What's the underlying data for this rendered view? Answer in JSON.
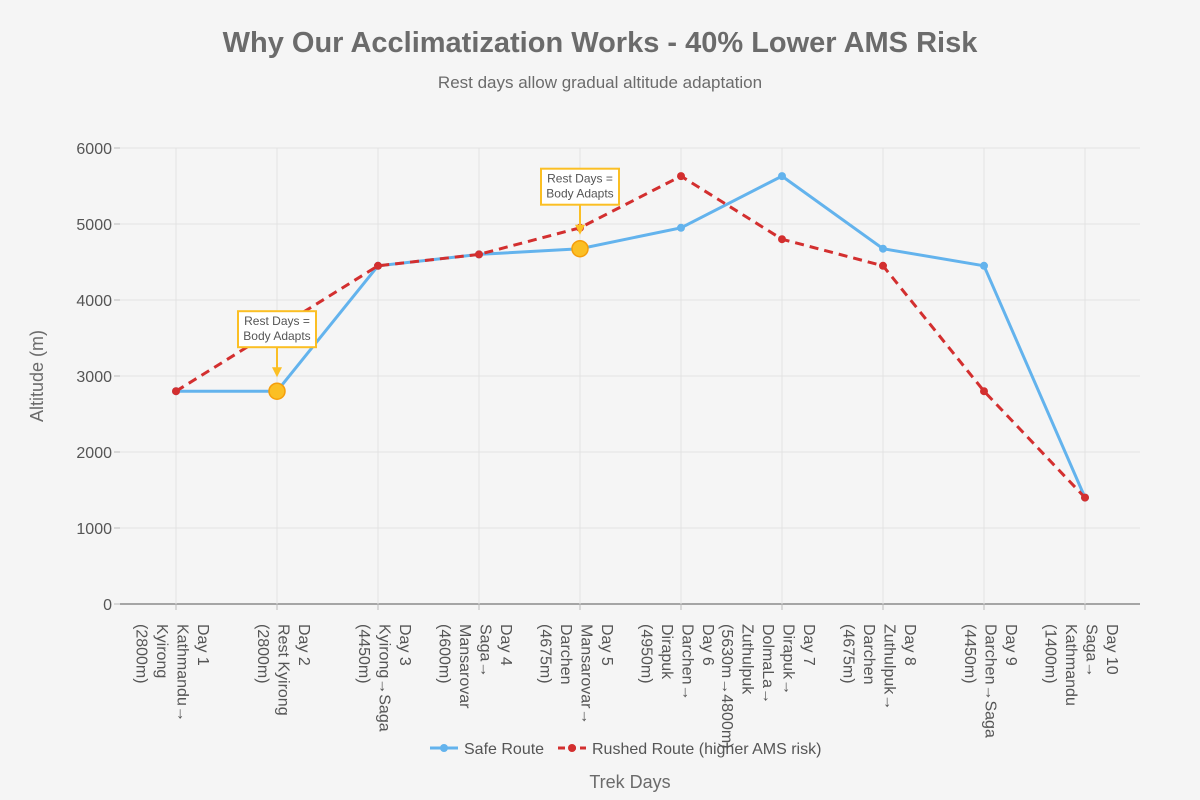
{
  "chart_data": {
    "type": "line",
    "title": "Why Our Acclimatization Works - 40% Lower AMS Risk",
    "subtitle": "Rest days allow gradual altitude adaptation",
    "xlabel": "Trek Days",
    "ylabel": "Altitude (m)",
    "ylim": [
      0,
      6000
    ],
    "yticks": [
      0,
      1000,
      2000,
      3000,
      4000,
      5000,
      6000
    ],
    "grid": true,
    "legend_position": "bottom",
    "categories": [
      [
        "Day 1",
        "Kathmandu→",
        "Kyirong",
        "(2800m)"
      ],
      [
        "Day 2",
        "Rest Kyirong",
        "(2800m)"
      ],
      [
        "Day 3",
        "Kyirong→Saga",
        "(4450m)"
      ],
      [
        "Day 4",
        "Saga→",
        "Mansarovar",
        "(4600m)"
      ],
      [
        "Day 5",
        "Mansarovar→",
        "Darchen",
        "(4675m)"
      ],
      [
        "Day 6",
        "Darchen→",
        "Dirapuk",
        "(4950m)"
      ],
      [
        "Day 7",
        "Dirapuk→",
        "DolmaLa→",
        "Zuthulpuk",
        "(5630m→4800m)"
      ],
      [
        "Day 8",
        "Zuthulpuk→",
        "Darchen",
        "(4675m)"
      ],
      [
        "Day 9",
        "Darchen→Saga",
        "(4450m)"
      ],
      [
        "Day 10",
        "Saga→",
        "Kathmandu",
        "(1400m)"
      ]
    ],
    "series": [
      {
        "name": "Safe Route",
        "color": "#63b3ed",
        "dash": false,
        "values": [
          2800,
          2800,
          4450,
          4600,
          4675,
          4950,
          5630,
          4675,
          4450,
          1400
        ]
      },
      {
        "name": "Rushed Route (higher AMS risk)",
        "color": "#d32f2f",
        "dash": true,
        "values": [
          2800,
          null,
          4450,
          4600,
          4950,
          5630,
          4800,
          4450,
          2800,
          1400
        ]
      }
    ],
    "highlight_points": {
      "series": "Safe Route",
      "indices": [
        1,
        4
      ],
      "color": "#fbbf24"
    },
    "annotations": [
      {
        "index": 1,
        "value": 2800,
        "lines": [
          "Rest Days =",
          "Body Adapts"
        ]
      },
      {
        "index": 4,
        "value": 4675,
        "lines": [
          "Rest Days =",
          "Body Adapts"
        ]
      }
    ]
  }
}
